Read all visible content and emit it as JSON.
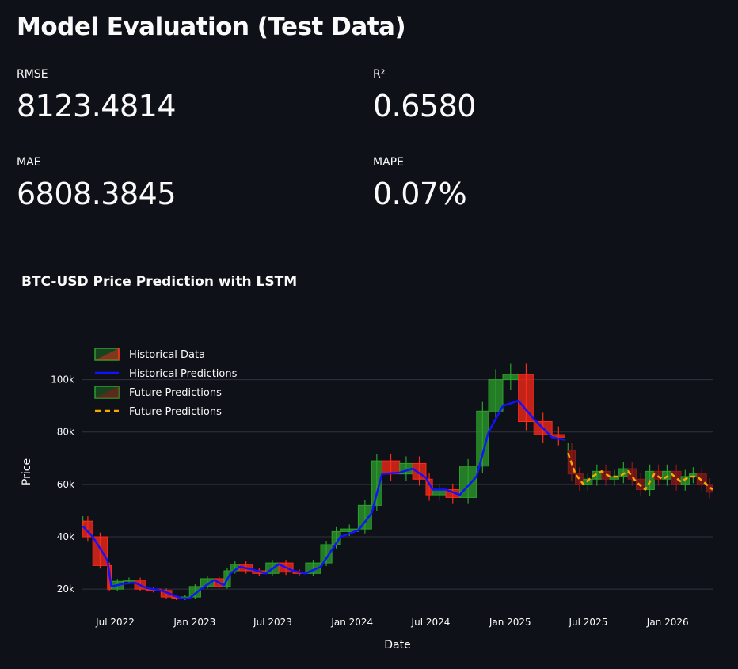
{
  "page": {
    "title": "Model Evaluation (Test Data)"
  },
  "metrics": {
    "rmse": {
      "label": "RMSE",
      "value": "8123.4814"
    },
    "r2": {
      "label": "R²",
      "value": "0.6580"
    },
    "mae": {
      "label": "MAE",
      "value": "6808.3845"
    },
    "mape": {
      "label": "MAPE",
      "value": "0.07%"
    }
  },
  "chart_data": {
    "type": "line",
    "title": "BTC-USD Price Prediction with LSTM",
    "xlabel": "Date",
    "ylabel": "Price",
    "x_tick_labels": [
      "Jul 2022",
      "Jan 2023",
      "Jul 2023",
      "Jan 2024",
      "Jul 2024",
      "Jan 2025",
      "Jul 2025",
      "Jan 2026"
    ],
    "x_ticks": [
      "2022-07-01",
      "2023-01-01",
      "2023-07-01",
      "2024-01-01",
      "2024-07-01",
      "2025-01-01",
      "2025-07-01",
      "2026-01-01"
    ],
    "xlim": [
      "2022-04-14",
      "2026-04-17"
    ],
    "y_tick_labels": [
      "20k",
      "40k",
      "60k",
      "80k",
      "100k"
    ],
    "y_ticks": [
      20000,
      40000,
      60000,
      80000,
      100000
    ],
    "ylim": [
      14000,
      115000
    ],
    "grid": true,
    "legend_position": "top-left",
    "series": [
      {
        "name": "Historical Data",
        "style": "candlestick",
        "colors": {
          "up": "#2ca02c",
          "down": "#ff2a1a"
        },
        "x": [
          "2022-04-17",
          "2022-05-10",
          "2022-06-13",
          "2022-06-22",
          "2022-07-20",
          "2022-08-15",
          "2022-09-10",
          "2022-10-15",
          "2022-11-09",
          "2022-11-30",
          "2022-12-20",
          "2023-01-15",
          "2023-02-15",
          "2023-03-10",
          "2023-03-25",
          "2023-04-15",
          "2023-05-15",
          "2023-06-15",
          "2023-07-15",
          "2023-08-17",
          "2023-09-15",
          "2023-10-20",
          "2023-11-15",
          "2023-12-05",
          "2024-01-15",
          "2024-02-15",
          "2024-03-10",
          "2024-04-20",
          "2024-05-20",
          "2024-06-20",
          "2024-07-05",
          "2024-08-05",
          "2024-09-06",
          "2024-10-15",
          "2024-11-12",
          "2024-12-15",
          "2025-01-20",
          "2025-02-25",
          "2025-04-08",
          "2025-05-08"
        ],
        "values": [
          46000,
          40000,
          29000,
          20000,
          23000,
          23500,
          20000,
          19500,
          17000,
          16500,
          17000,
          21000,
          24000,
          21000,
          27000,
          29500,
          27000,
          26000,
          30000,
          26500,
          26000,
          30000,
          37000,
          42000,
          43000,
          52000,
          69000,
          64000,
          68000,
          62000,
          56000,
          58000,
          55000,
          67000,
          88000,
          100000,
          102000,
          84000,
          79000,
          78000
        ]
      },
      {
        "name": "Historical Predictions",
        "style": "line",
        "color": "#1212ff",
        "x": [
          "2022-04-17",
          "2022-05-10",
          "2022-06-13",
          "2022-06-22",
          "2022-07-20",
          "2022-08-15",
          "2022-09-10",
          "2022-10-15",
          "2022-11-09",
          "2022-11-30",
          "2022-12-20",
          "2023-01-15",
          "2023-02-15",
          "2023-03-10",
          "2023-03-25",
          "2023-04-15",
          "2023-05-15",
          "2023-06-15",
          "2023-07-15",
          "2023-08-17",
          "2023-09-15",
          "2023-10-20",
          "2023-11-15",
          "2023-12-05",
          "2024-01-15",
          "2024-02-15",
          "2024-03-10",
          "2024-04-20",
          "2024-05-20",
          "2024-06-20",
          "2024-07-05",
          "2024-08-05",
          "2024-09-06",
          "2024-10-15",
          "2024-11-12",
          "2024-12-15",
          "2025-01-20",
          "2025-02-25",
          "2025-04-08",
          "2025-05-08"
        ],
        "values": [
          44000,
          40000,
          31000,
          21000,
          22000,
          22500,
          20500,
          19500,
          18000,
          16500,
          16500,
          20000,
          23500,
          21500,
          26000,
          28500,
          27500,
          26000,
          29500,
          27000,
          26000,
          28500,
          35000,
          40000,
          42500,
          49000,
          64000,
          64500,
          66000,
          62500,
          58000,
          58000,
          56000,
          63000,
          80000,
          90000,
          92000,
          85000,
          78000,
          77000
        ]
      },
      {
        "name": "Future Predictions",
        "style": "candlestick",
        "colors": {
          "up": "#2ca02c",
          "down": "#8b1a1a"
        },
        "x": [
          "2025-05-15",
          "2025-06-01",
          "2025-06-20",
          "2025-07-10",
          "2025-08-01",
          "2025-08-20",
          "2025-09-10",
          "2025-10-01",
          "2025-10-20",
          "2025-11-10",
          "2025-12-01",
          "2025-12-20",
          "2026-01-10",
          "2026-02-01",
          "2026-02-20",
          "2026-03-10",
          "2026-04-01",
          "2026-04-15"
        ],
        "values": [
          73000,
          64000,
          60000,
          62000,
          65000,
          62000,
          63000,
          66000,
          62000,
          58000,
          65000,
          62000,
          65000,
          60000,
          63000,
          64000,
          60000,
          57000
        ]
      },
      {
        "name": "Future Predictions",
        "style": "dashed-line",
        "color": "#ffa500",
        "x": [
          "2025-05-15",
          "2025-06-01",
          "2025-06-20",
          "2025-07-10",
          "2025-08-01",
          "2025-08-20",
          "2025-09-10",
          "2025-10-01",
          "2025-10-20",
          "2025-11-10",
          "2025-12-01",
          "2025-12-20",
          "2026-01-10",
          "2026-02-01",
          "2026-02-20",
          "2026-03-10",
          "2026-04-01",
          "2026-04-15"
        ],
        "values": [
          72000,
          64000,
          60000,
          63000,
          65000,
          63000,
          63000,
          65000,
          61000,
          58000,
          64000,
          62000,
          64000,
          61000,
          63000,
          63000,
          60000,
          58000
        ]
      }
    ]
  }
}
